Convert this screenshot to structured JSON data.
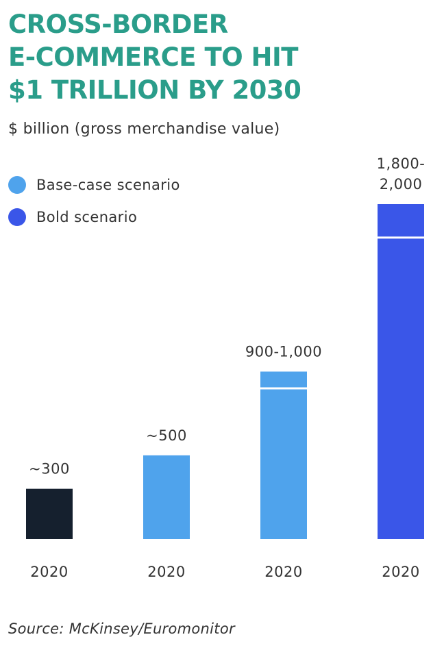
{
  "title": "CROSS-BORDER\nE-COMMERCE TO HIT\n$1 TRILLION BY 2030",
  "subtitle": "$ billion (gross merchandise value)",
  "legend": [
    {
      "label": "Base-case scenario",
      "color": "#4fa3ec"
    },
    {
      "label": "Bold scenario",
      "color": "#3a56e8"
    }
  ],
  "source": "Source: McKinsey/Euromonitor",
  "chart_data": {
    "type": "bar",
    "categories": [
      "2020",
      "2020",
      "2020",
      "2020"
    ],
    "bars": [
      {
        "low": 300,
        "high": 300,
        "label": "~300",
        "color": "#15202e",
        "scenario": ""
      },
      {
        "low": 500,
        "high": 500,
        "label": "~500",
        "color": "#4fa3ec",
        "scenario": "Base-case scenario"
      },
      {
        "low": 900,
        "high": 1000,
        "label": "900-1,000",
        "color": "#4fa3ec",
        "scenario": "Base-case scenario"
      },
      {
        "low": 1800,
        "high": 2000,
        "label": "1,800-\n2,000",
        "color": "#3a56e8",
        "scenario": "Bold scenario"
      }
    ],
    "ylim": [
      0,
      2000
    ],
    "grid": false,
    "legend_position": "top-left",
    "xlabel": "",
    "ylabel": ""
  }
}
